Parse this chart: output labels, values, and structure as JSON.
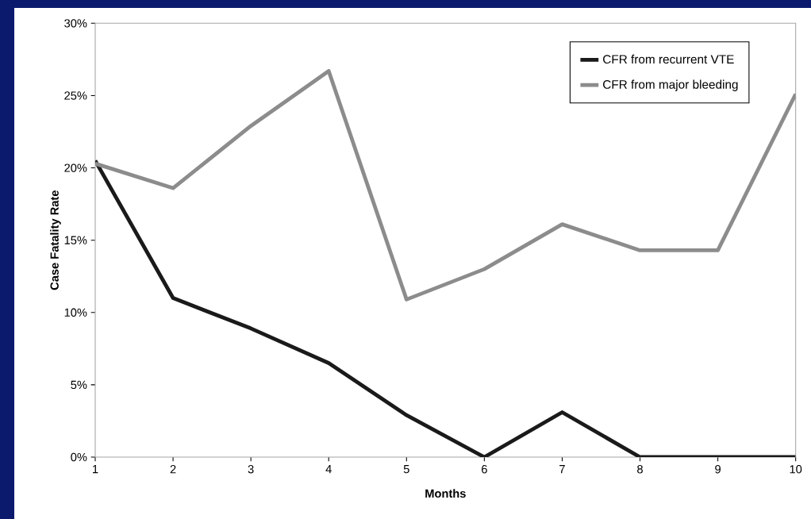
{
  "chart_data": {
    "type": "line",
    "xlabel": "Months",
    "ylabel": "Case Fatality Rate",
    "x": [
      1,
      2,
      3,
      4,
      5,
      6,
      7,
      8,
      9,
      10
    ],
    "series": [
      {
        "name": "CFR from recurrent VTE",
        "color": "#1a1a1a",
        "values": [
          20.5,
          11.0,
          8.9,
          6.5,
          2.9,
          0,
          3.1,
          0,
          0,
          0
        ]
      },
      {
        "name": "CFR from major bleeding",
        "color": "#8c8c8c",
        "values": [
          20.3,
          18.6,
          22.9,
          26.7,
          10.9,
          13.0,
          16.1,
          14.3,
          14.3,
          25.1
        ]
      }
    ],
    "xlim": [
      1,
      10
    ],
    "xticks": [
      1,
      2,
      3,
      4,
      5,
      6,
      7,
      8,
      9,
      10
    ],
    "ylim": [
      0,
      30
    ],
    "yticks": [
      {
        "value": 0,
        "label": "0%"
      },
      {
        "value": 5,
        "label": "5%"
      },
      {
        "value": 10,
        "label": "10%"
      },
      {
        "value": 15,
        "label": "15%"
      },
      {
        "value": 20,
        "label": "20%"
      },
      {
        "value": 25,
        "label": "25%"
      },
      {
        "value": 30,
        "label": "30%"
      }
    ],
    "grid": false,
    "legend": "top right",
    "marker": "none",
    "line_style": "solid"
  }
}
